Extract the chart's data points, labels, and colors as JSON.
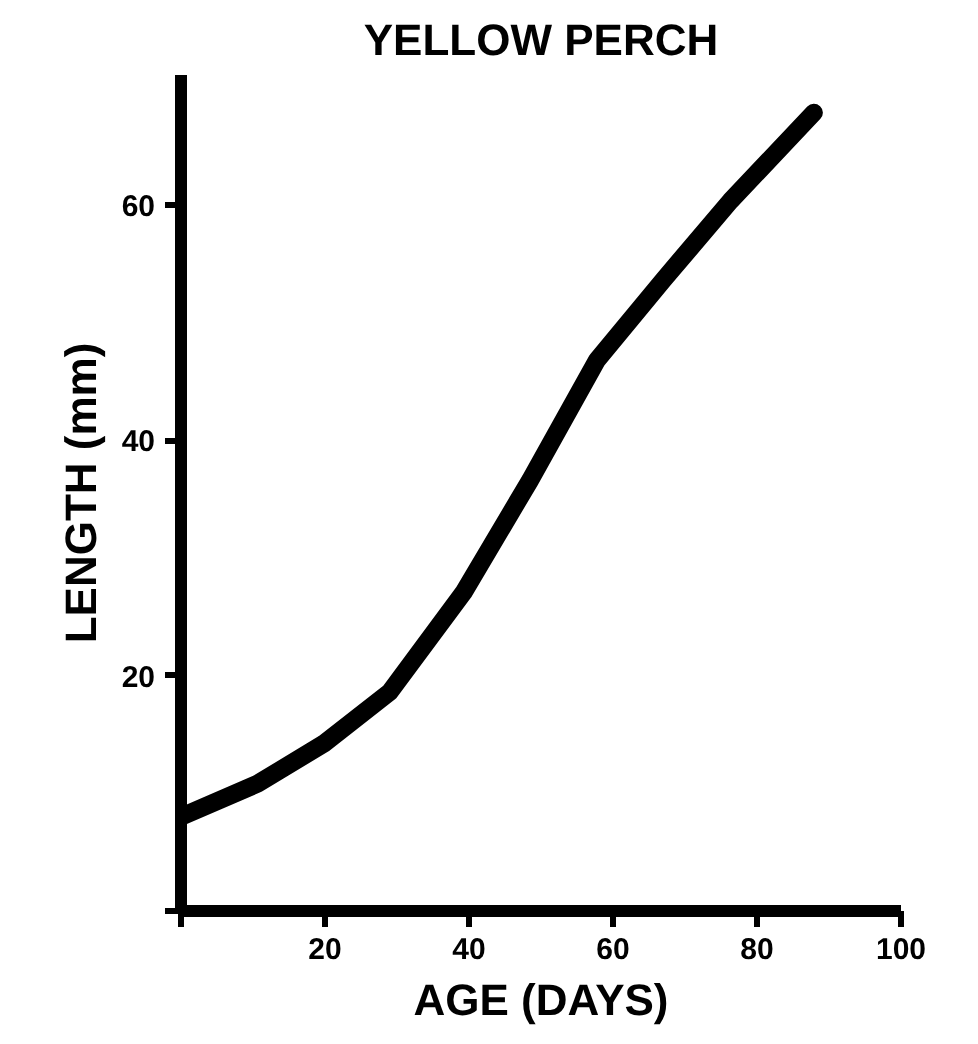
{
  "chart_data": {
    "type": "line",
    "title": "YELLOW PERCH",
    "xlabel": "AGE (DAYS)",
    "ylabel": "LENGTH (mm)",
    "x": [
      0,
      10.6,
      19.8,
      29,
      39.3,
      48.5,
      57.8,
      67,
      76.3,
      87.9
    ],
    "series": [
      {
        "color": "#000000",
        "values": [
          8,
          10.8,
          14.2,
          18.6,
          27.1,
          36.6,
          46.8,
          53.6,
          60.3,
          67.8
        ]
      }
    ],
    "xlim": [
      0,
      100
    ],
    "ylim": [
      0,
      71
    ],
    "xticks": [
      {
        "value": 0,
        "label": null
      },
      20,
      40,
      60,
      80,
      100
    ],
    "yticks": [
      {
        "value": 0,
        "label": null
      },
      20,
      40,
      60
    ],
    "grid": false,
    "marker": "none",
    "line_style": "solid"
  }
}
